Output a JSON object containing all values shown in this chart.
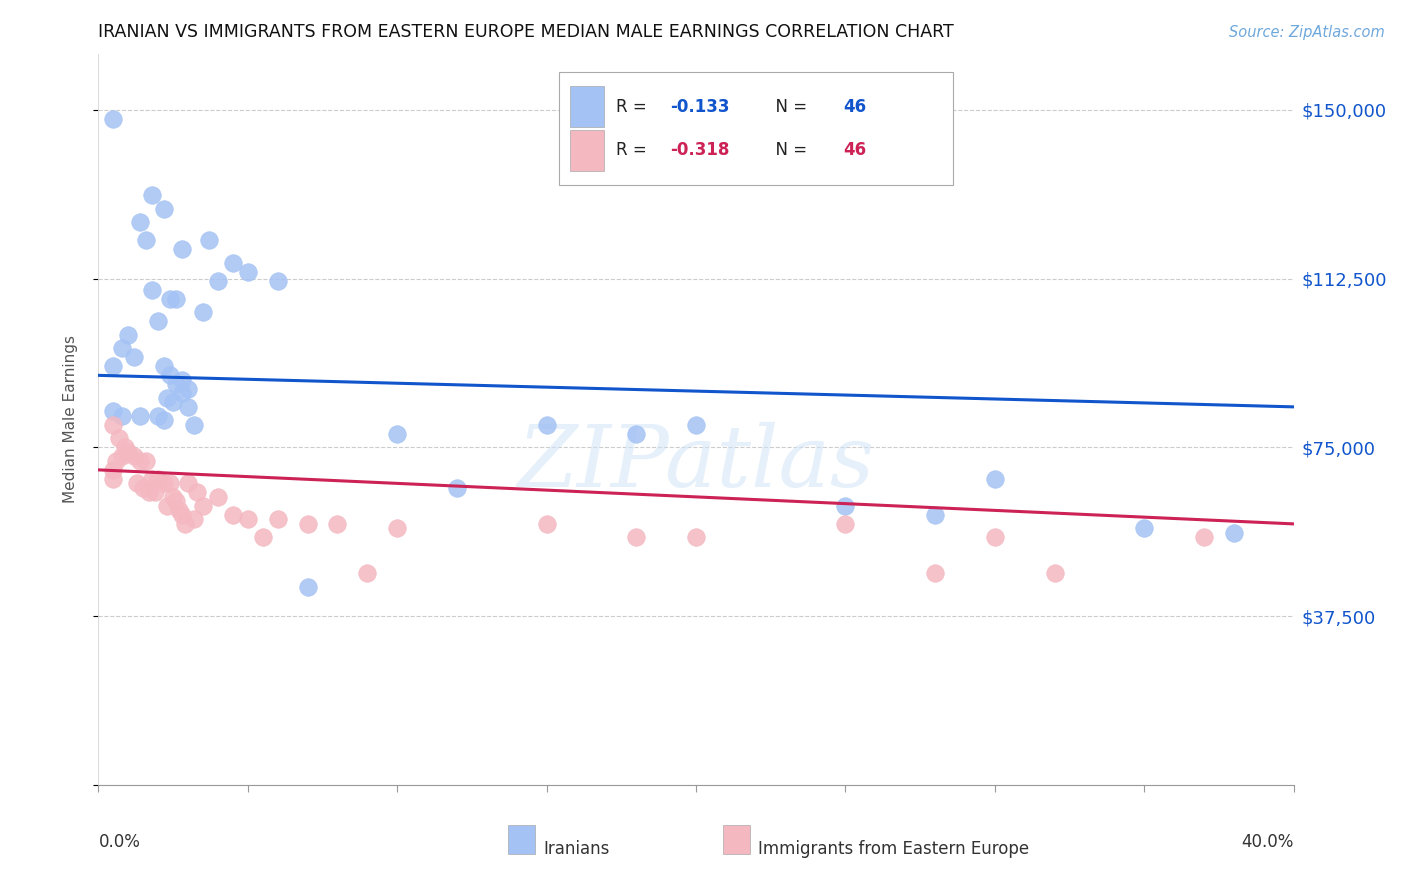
{
  "title": "IRANIAN VS IMMIGRANTS FROM EASTERN EUROPE MEDIAN MALE EARNINGS CORRELATION CHART",
  "source": "Source: ZipAtlas.com",
  "ylabel": "Median Male Earnings",
  "xmin": 0.0,
  "xmax": 0.4,
  "ymin": 0,
  "ymax": 162500,
  "iranians_R": -0.133,
  "iranians_N": 46,
  "eastern_europe_R": -0.318,
  "eastern_europe_N": 46,
  "blue_color": "#a4c2f4",
  "pink_color": "#f4b8c1",
  "blue_line_color": "#1155cc",
  "pink_line_color": "#cc2255",
  "blue_scatter": [
    [
      0.005,
      148000
    ],
    [
      0.018,
      131000
    ],
    [
      0.022,
      128000
    ],
    [
      0.014,
      125000
    ],
    [
      0.016,
      121000
    ],
    [
      0.037,
      121000
    ],
    [
      0.028,
      119000
    ],
    [
      0.045,
      116000
    ],
    [
      0.05,
      114000
    ],
    [
      0.04,
      112000
    ],
    [
      0.06,
      112000
    ],
    [
      0.018,
      110000
    ],
    [
      0.026,
      108000
    ],
    [
      0.024,
      108000
    ],
    [
      0.035,
      105000
    ],
    [
      0.02,
      103000
    ],
    [
      0.01,
      100000
    ],
    [
      0.008,
      97000
    ],
    [
      0.012,
      95000
    ],
    [
      0.005,
      93000
    ],
    [
      0.022,
      93000
    ],
    [
      0.024,
      91000
    ],
    [
      0.028,
      90000
    ],
    [
      0.026,
      89000
    ],
    [
      0.03,
      88000
    ],
    [
      0.028,
      87000
    ],
    [
      0.023,
      86000
    ],
    [
      0.025,
      85000
    ],
    [
      0.03,
      84000
    ],
    [
      0.005,
      83000
    ],
    [
      0.008,
      82000
    ],
    [
      0.014,
      82000
    ],
    [
      0.02,
      82000
    ],
    [
      0.022,
      81000
    ],
    [
      0.032,
      80000
    ],
    [
      0.15,
      80000
    ],
    [
      0.2,
      80000
    ],
    [
      0.18,
      78000
    ],
    [
      0.3,
      68000
    ],
    [
      0.12,
      66000
    ],
    [
      0.07,
      44000
    ],
    [
      0.35,
      57000
    ],
    [
      0.38,
      56000
    ],
    [
      0.1,
      78000
    ],
    [
      0.25,
      62000
    ],
    [
      0.28,
      60000
    ]
  ],
  "pink_scatter": [
    [
      0.005,
      80000
    ],
    [
      0.007,
      77000
    ],
    [
      0.009,
      75000
    ],
    [
      0.01,
      74000
    ],
    [
      0.008,
      73000
    ],
    [
      0.012,
      73000
    ],
    [
      0.006,
      72000
    ],
    [
      0.014,
      72000
    ],
    [
      0.016,
      72000
    ],
    [
      0.005,
      70000
    ],
    [
      0.005,
      68000
    ],
    [
      0.018,
      68000
    ],
    [
      0.02,
      68000
    ],
    [
      0.013,
      67000
    ],
    [
      0.022,
      67000
    ],
    [
      0.024,
      67000
    ],
    [
      0.03,
      67000
    ],
    [
      0.015,
      66000
    ],
    [
      0.017,
      65000
    ],
    [
      0.019,
      65000
    ],
    [
      0.033,
      65000
    ],
    [
      0.025,
      64000
    ],
    [
      0.04,
      64000
    ],
    [
      0.026,
      63000
    ],
    [
      0.023,
      62000
    ],
    [
      0.035,
      62000
    ],
    [
      0.027,
      61000
    ],
    [
      0.028,
      60000
    ],
    [
      0.045,
      60000
    ],
    [
      0.032,
      59000
    ],
    [
      0.05,
      59000
    ],
    [
      0.06,
      59000
    ],
    [
      0.029,
      58000
    ],
    [
      0.07,
      58000
    ],
    [
      0.08,
      58000
    ],
    [
      0.1,
      57000
    ],
    [
      0.055,
      55000
    ],
    [
      0.15,
      58000
    ],
    [
      0.18,
      55000
    ],
    [
      0.2,
      55000
    ],
    [
      0.25,
      58000
    ],
    [
      0.3,
      55000
    ],
    [
      0.28,
      47000
    ],
    [
      0.32,
      47000
    ],
    [
      0.37,
      55000
    ],
    [
      0.09,
      47000
    ]
  ],
  "blue_line": [
    0.0,
    0.4,
    91000,
    84000
  ],
  "pink_line": [
    0.0,
    0.4,
    70000,
    58000
  ],
  "watermark": "ZIPatlas",
  "legend_label_blue": "Iranians",
  "legend_label_pink": "Immigrants from Eastern Europe",
  "background_color": "#ffffff",
  "grid_color": "#cccccc",
  "ytick_vals": [
    37500,
    75000,
    112500,
    150000
  ]
}
